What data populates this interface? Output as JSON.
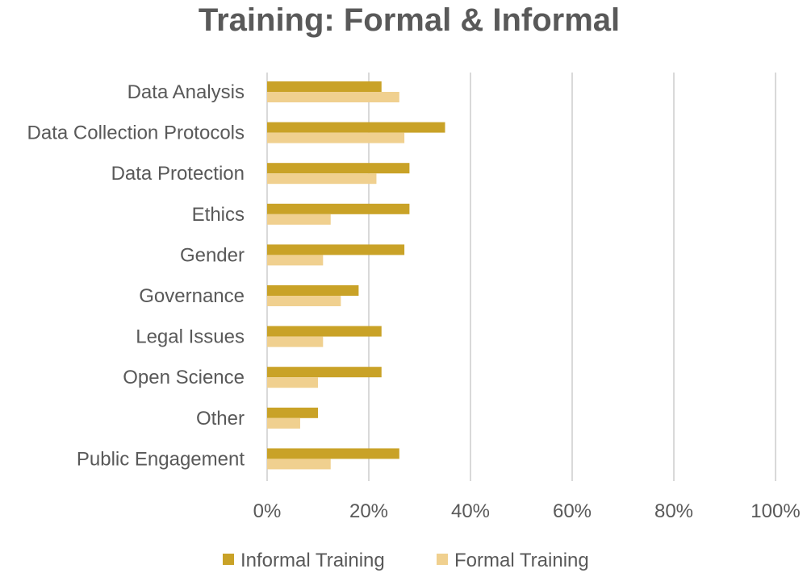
{
  "chart_data": {
    "type": "bar",
    "orientation": "horizontal",
    "title": "Training: Formal & Informal",
    "xlabel": "",
    "ylabel": "",
    "xlim": [
      0,
      100
    ],
    "x_ticks": [
      "0%",
      "20%",
      "40%",
      "60%",
      "80%",
      "100%"
    ],
    "x_tick_values": [
      0,
      20,
      40,
      60,
      80,
      100
    ],
    "grid": true,
    "legend_position": "bottom",
    "categories": [
      "Data Analysis",
      "Data Collection Protocols",
      "Data Protection",
      "Ethics",
      "Gender",
      "Governance",
      "Legal Issues",
      "Open Science",
      "Other",
      "Public Engagement"
    ],
    "series": [
      {
        "name": "Informal Training",
        "color": "#c9a227",
        "values": [
          22.5,
          35,
          28,
          28,
          27,
          18,
          22.5,
          22.5,
          10,
          26
        ]
      },
      {
        "name": "Formal Training",
        "color": "#f0d08f",
        "values": [
          26,
          27,
          21.5,
          12.5,
          11,
          14.5,
          11,
          10,
          6.5,
          12.5
        ]
      }
    ]
  }
}
